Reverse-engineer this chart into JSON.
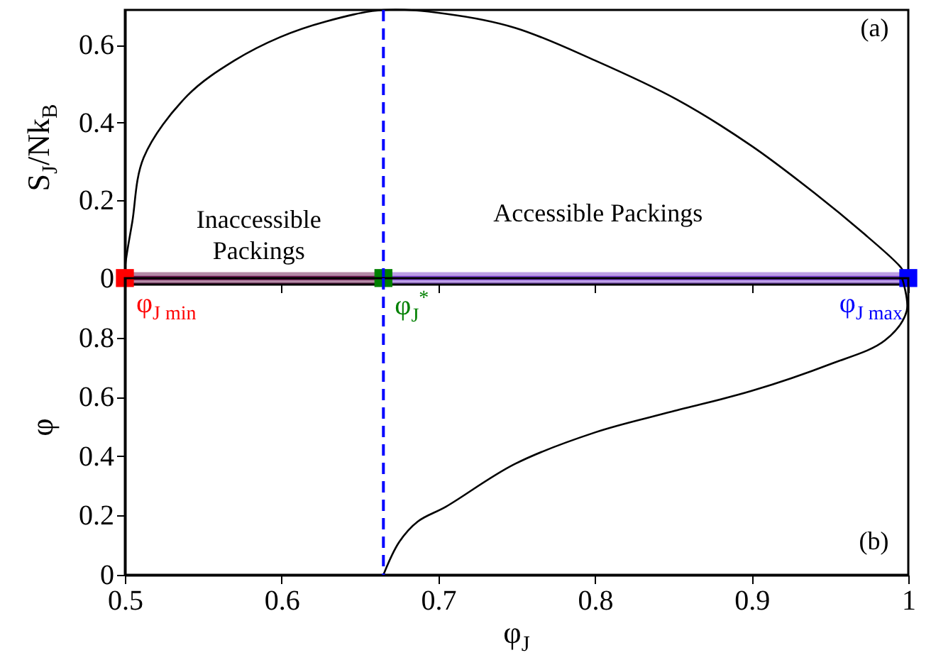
{
  "chart_data": [
    {
      "type": "line",
      "ylabel": "S$_{J}$/Nk$_{B}$",
      "xlim": [
        0.5,
        1
      ],
      "xticks": [
        0.5,
        0.6,
        0.7,
        0.8,
        0.9,
        1
      ],
      "ylim": [
        -0.015,
        0.69
      ],
      "yticks": [
        0,
        0.2,
        0.4,
        0.6
      ],
      "tick_labels": "y",
      "series": [
        {
          "type": "line",
          "color": "#000000",
          "x": [
            0.5,
            0.5003,
            0.5047,
            0.512,
            0.54,
            0.57,
            0.599,
            0.628,
            0.665,
            0.705,
            0.749,
            0.8,
            0.852,
            0.9,
            0.941,
            0.97,
            0.994,
            1.0
          ],
          "values": [
            0,
            0.034,
            0.144,
            0.31,
            0.47,
            0.56,
            0.62,
            0.66,
            0.69,
            0.68,
            0.644,
            0.56,
            0.46,
            0.34,
            0.216,
            0.12,
            0.033,
            0
          ]
        },
        {
          "type": "line",
          "color": "#6b1550",
          "x": [
            0.5,
            0.665
          ],
          "values": [
            0,
            0
          ],
          "lower": [
            -0.015,
            -0.015
          ],
          "upper": [
            0.015,
            0.015
          ]
        },
        {
          "type": "line",
          "color": "#7b3fd0",
          "x": [
            0.665,
            1.0
          ],
          "values": [
            0,
            0
          ],
          "lower": [
            -0.015,
            -0.015
          ],
          "upper": [
            0.015,
            0.015
          ]
        },
        {
          "type": "scatter",
          "name": "φ$_{J min}$",
          "color": "#ff0000",
          "marker": "square",
          "x": [
            0.5
          ],
          "values": [
            0
          ]
        },
        {
          "type": "scatter",
          "name": "φ$_{J}$$^{*}$",
          "color": "#008000",
          "marker": "square",
          "x": [
            0.665
          ],
          "values": [
            0
          ]
        },
        {
          "type": "scatter",
          "name": "φ$_{J max}$",
          "color": "#0000ff",
          "marker": "square",
          "x": [
            1.0
          ],
          "values": [
            0
          ]
        }
      ],
      "ref_lines": [
        {
          "axis": "x",
          "value": 0.665,
          "color": "#0000ff",
          "line_style": "dashed"
        }
      ],
      "annotations": [
        "(a)",
        "Inaccessible\nPackings",
        "Accessible Packings"
      ]
    },
    {
      "type": "line",
      "xlabel": "φ$_{J}$",
      "ylabel": "φ",
      "xlim": [
        0.5,
        1
      ],
      "xticks": [
        0.5,
        0.6,
        0.7,
        0.8,
        0.9,
        1
      ],
      "ylim": [
        0,
        1
      ],
      "yticks": [
        0,
        0.2,
        0.4,
        0.6,
        0.8
      ],
      "series": [
        {
          "type": "line",
          "color": "#000000",
          "x": [
            0.665,
            0.675,
            0.687,
            0.705,
            0.749,
            0.8,
            0.849,
            0.9,
            0.95,
            0.985,
            0.999,
            0.996
          ],
          "values": [
            0,
            0.11,
            0.18,
            0.23,
            0.374,
            0.48,
            0.55,
            0.62,
            0.71,
            0.79,
            0.89,
            1.0
          ]
        }
      ],
      "ref_lines": [
        {
          "axis": "x",
          "value": 0.665,
          "color": "#0000ff",
          "line_style": "dashed"
        }
      ],
      "annotations": [
        "(b)"
      ]
    }
  ]
}
